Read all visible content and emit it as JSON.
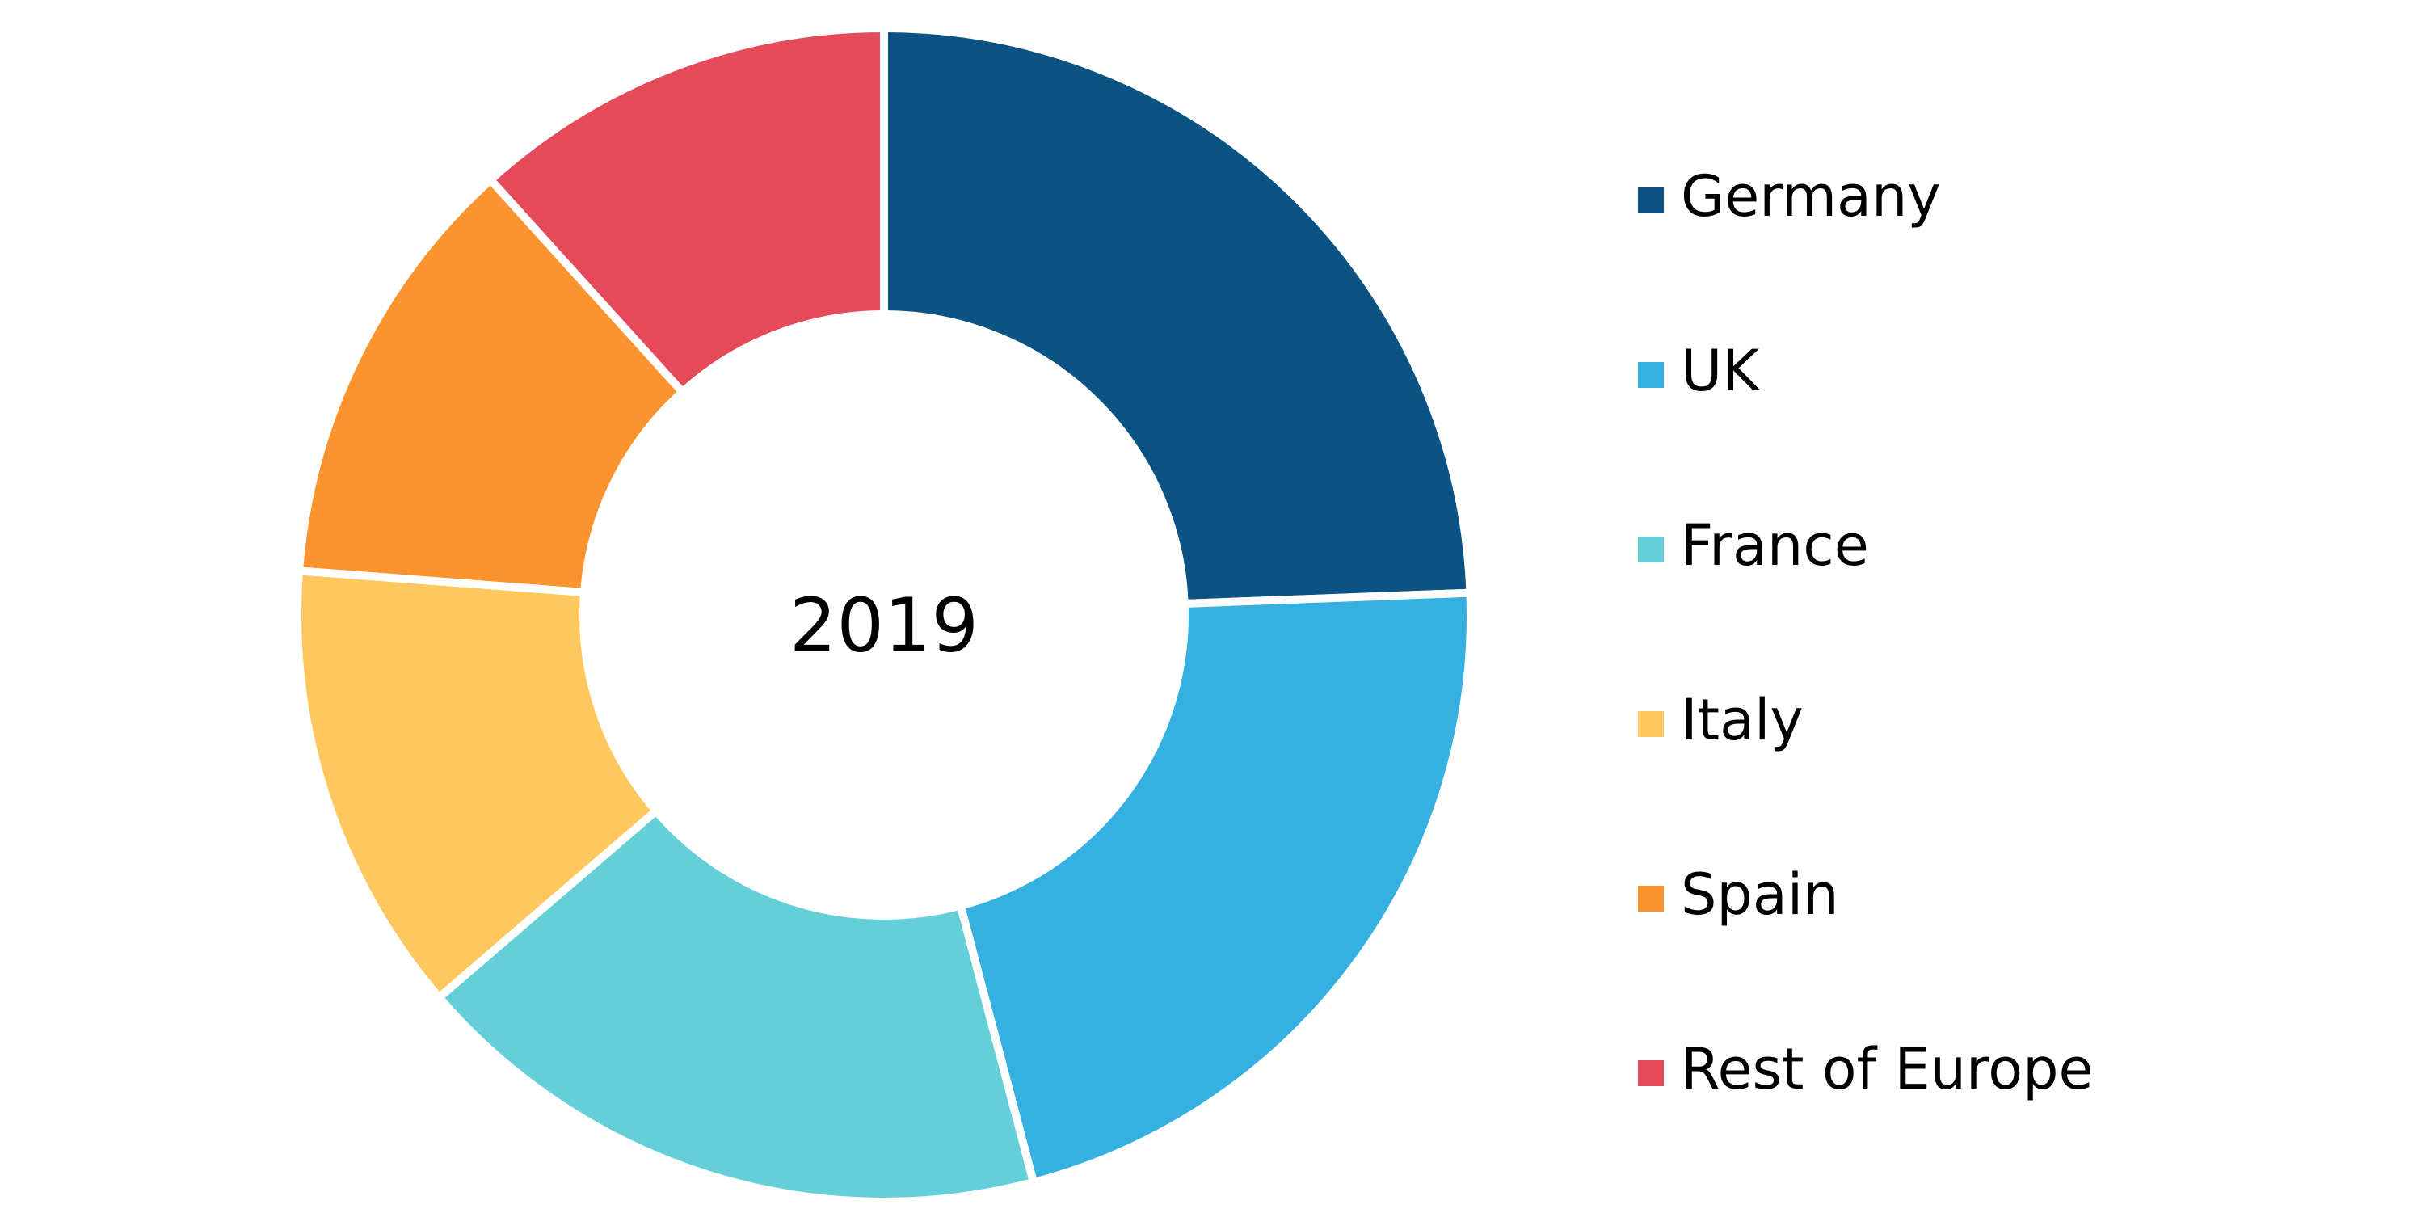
{
  "chart_data": {
    "type": "donut",
    "center_label": "2019",
    "categories": [
      "Germany",
      "UK",
      "France",
      "Italy",
      "Spain",
      "Rest of Europe"
    ],
    "values": [
      24.4,
      21.5,
      17.8,
      12.5,
      12.1,
      11.7
    ],
    "colors": [
      "#0a5382",
      "#36b0e1",
      "#65cfd8",
      "#fec85e",
      "#fb932e",
      "#e44a59"
    ],
    "legend": "right"
  }
}
